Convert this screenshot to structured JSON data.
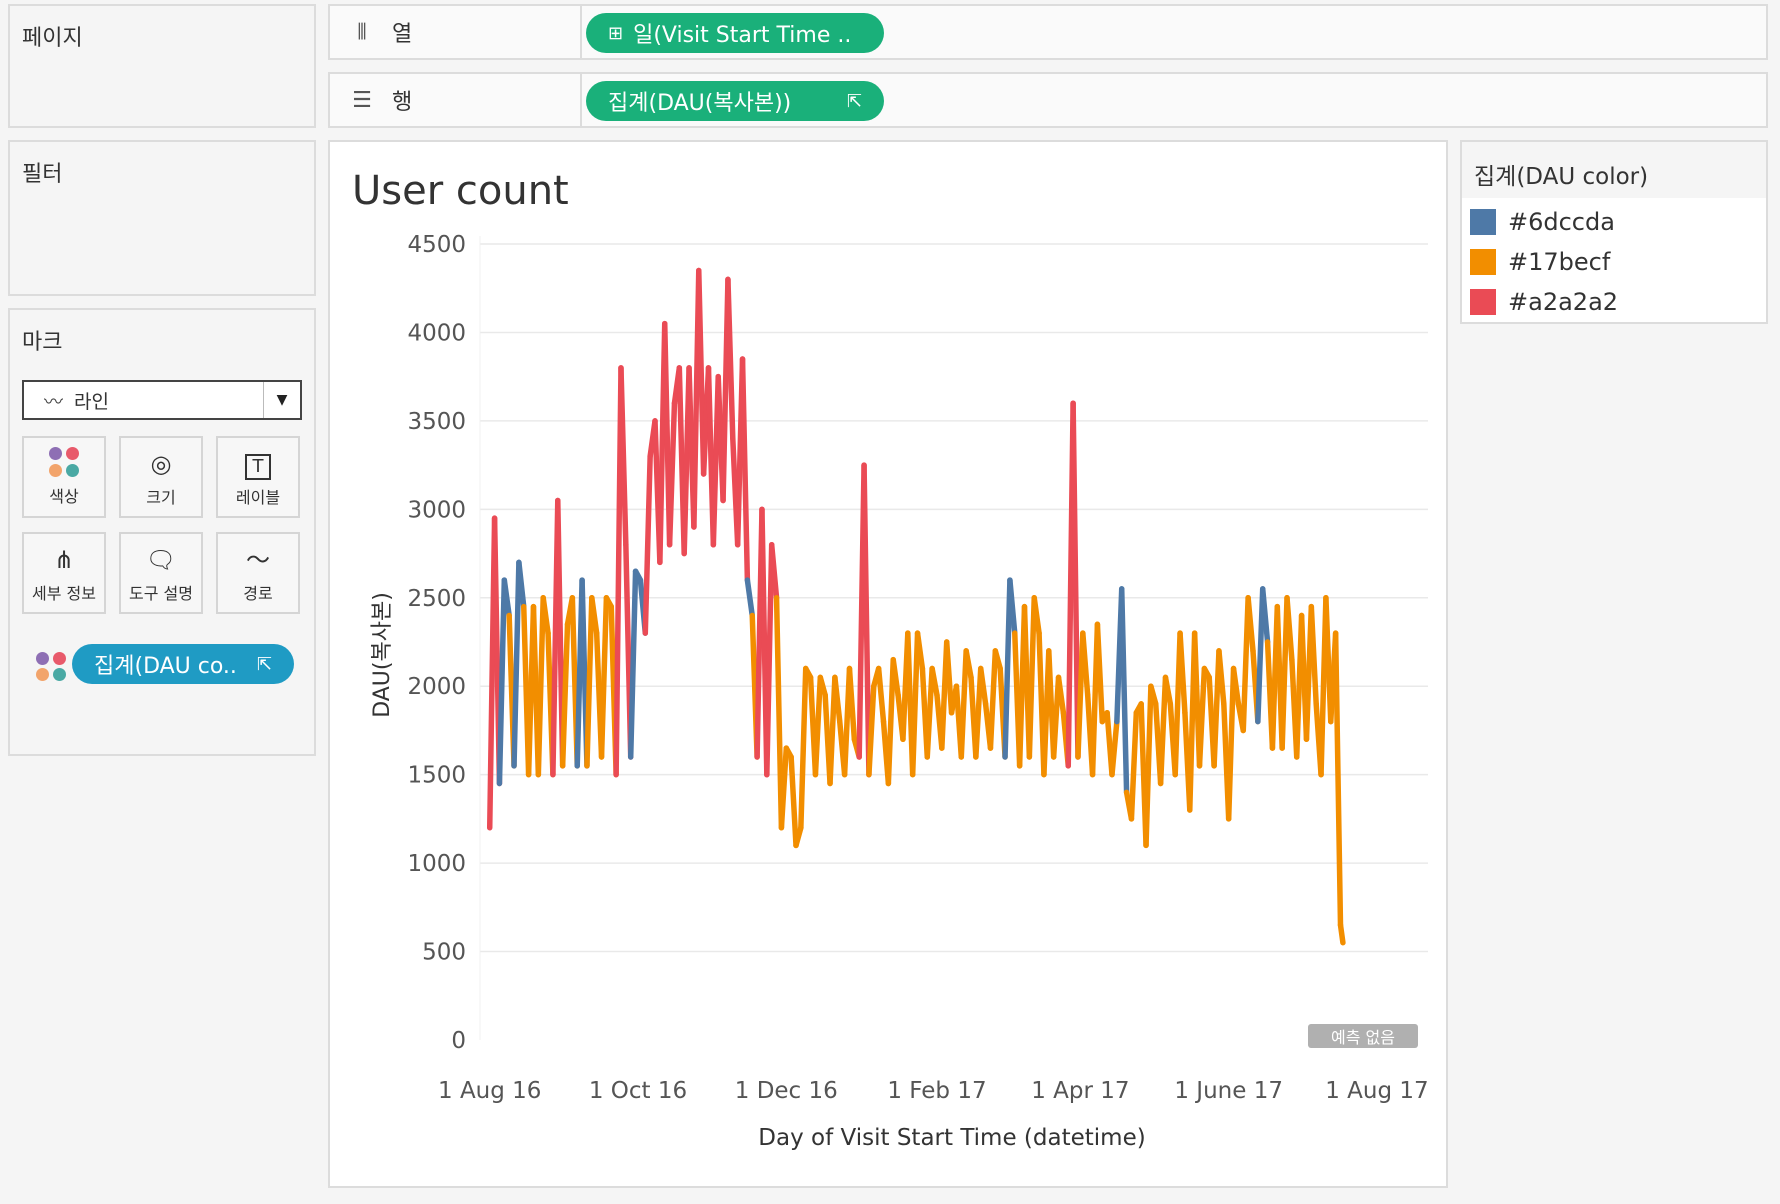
{
  "panels": {
    "pages": "페이지",
    "filters": "필터",
    "marks": "마크"
  },
  "shelves": {
    "columns": {
      "label": "열",
      "icon": "columns-icon",
      "pill": "일(Visit Start Time ..",
      "pill_prefix": "⊞"
    },
    "rows": {
      "label": "행",
      "icon": "rows-icon",
      "pill": "집계(DAU(복사본))",
      "pill_suffix": "⇱"
    }
  },
  "marks": {
    "type": "라인",
    "buttons": {
      "color": "색상",
      "size": "크기",
      "label": "레이블",
      "detail": "세부 정보",
      "tooltip": "도구 설명",
      "path": "경로"
    },
    "color_pill": "집계(DAU co.."
  },
  "legend": {
    "title": "집계(DAU color)",
    "items": [
      {
        "label": "#6dccda",
        "color": "#4e79a7"
      },
      {
        "label": "#17becf",
        "color": "#f28e00"
      },
      {
        "label": "#a2a2a2",
        "color": "#ea4b55"
      }
    ]
  },
  "badge": "예측 없음",
  "colors": {
    "pill_green": "#1ab07a",
    "pill_blue": "#1f9bc4",
    "blue": "#4e79a7",
    "orange": "#f28e00",
    "red": "#ea4b55"
  },
  "chart_data": {
    "type": "line",
    "title": "User count",
    "xlabel": "Day of Visit Start Time (datetime)",
    "ylabel": "DAU(복사본)",
    "ylim": [
      0,
      4500
    ],
    "yticks": [
      0,
      500,
      1000,
      1500,
      2000,
      2500,
      3000,
      3500,
      4000,
      4500
    ],
    "xticks": [
      "1 Aug 16",
      "1 Oct 16",
      "1 Dec 16",
      "1 Feb 17",
      "1 Apr 17",
      "1 June 17",
      "1 Aug 17"
    ],
    "xlim": [
      "2016-07-28",
      "2017-08-22"
    ],
    "grid": true,
    "legend_position": "right",
    "series": [
      {
        "points": [
          [
            "2016-08-01",
            1200
          ],
          [
            "2016-08-03",
            2950
          ],
          [
            "2016-08-05",
            1450
          ],
          [
            "2016-08-07",
            2600
          ],
          [
            "2016-08-09",
            2400
          ],
          [
            "2016-08-11",
            1550
          ],
          [
            "2016-08-13",
            2700
          ],
          [
            "2016-08-15",
            2450
          ],
          [
            "2016-08-17",
            1500
          ],
          [
            "2016-08-19",
            2450
          ],
          [
            "2016-08-21",
            1500
          ],
          [
            "2016-08-23",
            2500
          ],
          [
            "2016-08-25",
            2300
          ],
          [
            "2016-08-27",
            1500
          ],
          [
            "2016-08-29",
            3050
          ],
          [
            "2016-08-31",
            1550
          ],
          [
            "2016-09-02",
            2350
          ],
          [
            "2016-09-04",
            2500
          ],
          [
            "2016-09-06",
            1550
          ],
          [
            "2016-09-08",
            2600
          ],
          [
            "2016-09-10",
            1550
          ],
          [
            "2016-09-12",
            2500
          ],
          [
            "2016-09-14",
            2300
          ],
          [
            "2016-09-16",
            1600
          ],
          [
            "2016-09-18",
            2500
          ],
          [
            "2016-09-20",
            2450
          ],
          [
            "2016-09-22",
            1500
          ],
          [
            "2016-09-24",
            3800
          ],
          [
            "2016-09-26",
            2800
          ],
          [
            "2016-09-28",
            1600
          ],
          [
            "2016-09-30",
            2650
          ],
          [
            "2016-10-02",
            2600
          ],
          [
            "2016-10-04",
            2300
          ],
          [
            "2016-10-06",
            3300
          ],
          [
            "2016-10-08",
            3500
          ],
          [
            "2016-10-10",
            2700
          ],
          [
            "2016-10-12",
            4050
          ],
          [
            "2016-10-14",
            2800
          ],
          [
            "2016-10-16",
            3600
          ],
          [
            "2016-10-18",
            3800
          ],
          [
            "2016-10-20",
            2750
          ],
          [
            "2016-10-22",
            3800
          ],
          [
            "2016-10-24",
            2900
          ],
          [
            "2016-10-26",
            4350
          ],
          [
            "2016-10-28",
            3200
          ],
          [
            "2016-10-30",
            3800
          ],
          [
            "2016-11-01",
            2800
          ],
          [
            "2016-11-03",
            3750
          ],
          [
            "2016-11-05",
            3050
          ],
          [
            "2016-11-07",
            4300
          ],
          [
            "2016-11-09",
            3400
          ],
          [
            "2016-11-11",
            2800
          ],
          [
            "2016-11-13",
            3850
          ],
          [
            "2016-11-15",
            2600
          ],
          [
            "2016-11-17",
            2400
          ],
          [
            "2016-11-19",
            1600
          ],
          [
            "2016-11-21",
            3000
          ],
          [
            "2016-11-23",
            1500
          ],
          [
            "2016-11-25",
            2800
          ],
          [
            "2016-11-27",
            2500
          ],
          [
            "2016-11-29",
            1200
          ],
          [
            "2016-12-01",
            1650
          ],
          [
            "2016-12-03",
            1600
          ],
          [
            "2016-12-05",
            1100
          ],
          [
            "2016-12-07",
            1200
          ],
          [
            "2016-12-09",
            2100
          ],
          [
            "2016-12-11",
            2050
          ],
          [
            "2016-12-13",
            1500
          ],
          [
            "2016-12-15",
            2050
          ],
          [
            "2016-12-17",
            1950
          ],
          [
            "2016-12-19",
            1450
          ],
          [
            "2016-12-21",
            2050
          ],
          [
            "2016-12-23",
            1800
          ],
          [
            "2016-12-25",
            1500
          ],
          [
            "2016-12-27",
            2100
          ],
          [
            "2016-12-29",
            1700
          ],
          [
            "2016-12-31",
            1600
          ],
          [
            "2017-01-02",
            3250
          ],
          [
            "2017-01-04",
            1500
          ],
          [
            "2017-01-06",
            2000
          ],
          [
            "2017-01-08",
            2100
          ],
          [
            "2017-01-10",
            1800
          ],
          [
            "2017-01-12",
            1450
          ],
          [
            "2017-01-14",
            2150
          ],
          [
            "2017-01-16",
            1950
          ],
          [
            "2017-01-18",
            1700
          ],
          [
            "2017-01-20",
            2300
          ],
          [
            "2017-01-22",
            1500
          ],
          [
            "2017-01-24",
            2300
          ],
          [
            "2017-01-26",
            2100
          ],
          [
            "2017-01-28",
            1600
          ],
          [
            "2017-01-30",
            2100
          ],
          [
            "2017-02-01",
            1950
          ],
          [
            "2017-02-03",
            1650
          ],
          [
            "2017-02-05",
            2250
          ],
          [
            "2017-02-07",
            1850
          ],
          [
            "2017-02-09",
            2000
          ],
          [
            "2017-02-11",
            1600
          ],
          [
            "2017-02-13",
            2200
          ],
          [
            "2017-02-15",
            2050
          ],
          [
            "2017-02-17",
            1600
          ],
          [
            "2017-02-19",
            2100
          ],
          [
            "2017-02-21",
            1900
          ],
          [
            "2017-02-23",
            1650
          ],
          [
            "2017-02-25",
            2200
          ],
          [
            "2017-02-27",
            2100
          ],
          [
            "2017-03-01",
            1600
          ],
          [
            "2017-03-03",
            2600
          ],
          [
            "2017-03-05",
            2300
          ],
          [
            "2017-03-07",
            1550
          ],
          [
            "2017-03-09",
            2450
          ],
          [
            "2017-03-11",
            1600
          ],
          [
            "2017-03-13",
            2500
          ],
          [
            "2017-03-15",
            2300
          ],
          [
            "2017-03-17",
            1500
          ],
          [
            "2017-03-19",
            2200
          ],
          [
            "2017-03-21",
            1600
          ],
          [
            "2017-03-23",
            2050
          ],
          [
            "2017-03-25",
            1850
          ],
          [
            "2017-03-27",
            1550
          ],
          [
            "2017-03-29",
            3600
          ],
          [
            "2017-03-31",
            1600
          ],
          [
            "2017-04-02",
            2300
          ],
          [
            "2017-04-04",
            1950
          ],
          [
            "2017-04-06",
            1500
          ],
          [
            "2017-04-08",
            2350
          ],
          [
            "2017-04-10",
            1800
          ],
          [
            "2017-04-12",
            1850
          ],
          [
            "2017-04-14",
            1500
          ],
          [
            "2017-04-16",
            1800
          ],
          [
            "2017-04-18",
            2550
          ],
          [
            "2017-04-20",
            1400
          ],
          [
            "2017-04-22",
            1250
          ],
          [
            "2017-04-24",
            1850
          ],
          [
            "2017-04-26",
            1900
          ],
          [
            "2017-04-28",
            1100
          ],
          [
            "2017-04-30",
            2000
          ],
          [
            "2017-05-02",
            1900
          ],
          [
            "2017-05-04",
            1450
          ],
          [
            "2017-05-06",
            2050
          ],
          [
            "2017-05-08",
            1900
          ],
          [
            "2017-05-10",
            1500
          ],
          [
            "2017-05-12",
            2300
          ],
          [
            "2017-05-14",
            1850
          ],
          [
            "2017-05-16",
            1300
          ],
          [
            "2017-05-18",
            2300
          ],
          [
            "2017-05-20",
            1550
          ],
          [
            "2017-05-22",
            2100
          ],
          [
            "2017-05-24",
            2050
          ],
          [
            "2017-05-26",
            1550
          ],
          [
            "2017-05-28",
            2200
          ],
          [
            "2017-05-30",
            1900
          ],
          [
            "2017-06-01",
            1250
          ],
          [
            "2017-06-03",
            2100
          ],
          [
            "2017-06-05",
            1900
          ],
          [
            "2017-06-07",
            1750
          ],
          [
            "2017-06-09",
            2500
          ],
          [
            "2017-06-11",
            2200
          ],
          [
            "2017-06-13",
            1800
          ],
          [
            "2017-06-15",
            2550
          ],
          [
            "2017-06-17",
            2250
          ],
          [
            "2017-06-19",
            1650
          ],
          [
            "2017-06-21",
            2450
          ],
          [
            "2017-06-23",
            1650
          ],
          [
            "2017-06-25",
            2500
          ],
          [
            "2017-06-27",
            2150
          ],
          [
            "2017-06-29",
            1600
          ],
          [
            "2017-07-01",
            2400
          ],
          [
            "2017-07-03",
            1700
          ],
          [
            "2017-07-05",
            2450
          ],
          [
            "2017-07-07",
            1900
          ],
          [
            "2017-07-09",
            1500
          ],
          [
            "2017-07-11",
            2500
          ],
          [
            "2017-07-13",
            1800
          ],
          [
            "2017-07-15",
            2300
          ],
          [
            "2017-07-17",
            650
          ],
          [
            "2017-07-18",
            550
          ]
        ]
      }
    ]
  }
}
